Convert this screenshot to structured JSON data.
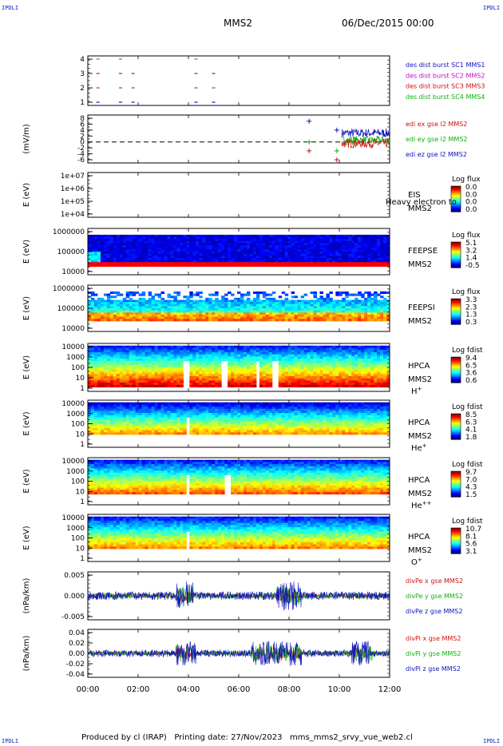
{
  "corner_labels": {
    "tl": "IPDLI",
    "tr": "IPDLI",
    "bl": "IPDLI",
    "br": "IPDLI"
  },
  "header": {
    "spacecraft": "MMS2",
    "date": "06/Dec/2015 00:00"
  },
  "footer": "Produced by cl (IRAP)   Printing date: 27/Nov/2023   mms_mms2_srvy_vue_web2.cl",
  "time_axis": {
    "ticks": [
      "00:00",
      "02:00",
      "04:00",
      "06:00",
      "08:00",
      "10:00",
      "12:00"
    ],
    "range_hours": [
      0,
      12
    ]
  },
  "chart_data": [
    {
      "id": "p1",
      "type": "scatter",
      "y_ticks": [
        "4",
        "3",
        "2",
        "1"
      ],
      "legend": [
        {
          "text": "des dist burst SC1 MMS1",
          "color": "#1010c0"
        },
        {
          "text": "des dist burst SC2 MMS2",
          "color": "#c010c0"
        },
        {
          "text": "des dist burst SC3 MMS3",
          "color": "#d01010"
        },
        {
          "text": "des dist burst SC4 MMS4",
          "color": "#10b010"
        }
      ],
      "marks": [
        {
          "t": 0.4,
          "y": 4,
          "c": "#10b010"
        },
        {
          "t": 1.3,
          "y": 4,
          "c": "#10b010"
        },
        {
          "t": 4.3,
          "y": 4,
          "c": "#10b010"
        },
        {
          "t": 0.4,
          "y": 3,
          "c": "#d01010"
        },
        {
          "t": 1.3,
          "y": 3,
          "c": "#d01010"
        },
        {
          "t": 1.8,
          "y": 3,
          "c": "#d01010"
        },
        {
          "t": 4.3,
          "y": 3,
          "c": "#d01010"
        },
        {
          "t": 5.0,
          "y": 3,
          "c": "#d01010"
        },
        {
          "t": 0.4,
          "y": 2,
          "c": "#c010c0"
        },
        {
          "t": 1.3,
          "y": 2,
          "c": "#c010c0"
        },
        {
          "t": 1.8,
          "y": 2,
          "c": "#c010c0"
        },
        {
          "t": 4.3,
          "y": 2,
          "c": "#c010c0"
        },
        {
          "t": 5.0,
          "y": 2,
          "c": "#c010c0"
        },
        {
          "t": 0.4,
          "y": 1,
          "c": "#1010c0"
        },
        {
          "t": 1.3,
          "y": 1,
          "c": "#1010c0"
        },
        {
          "t": 1.8,
          "y": 1,
          "c": "#1010c0"
        },
        {
          "t": 4.3,
          "y": 1,
          "c": "#1010c0"
        },
        {
          "t": 5.0,
          "y": 1,
          "c": "#1010c0"
        }
      ]
    },
    {
      "id": "p2",
      "type": "line",
      "ylabel": "(mV/m)",
      "y_ticks": [
        "8",
        "6",
        "4",
        "2",
        "0",
        "-2",
        "-4",
        "-6"
      ],
      "ylim": [
        -6,
        8
      ],
      "legend": [
        {
          "text": "edi ex gse l2 MMS2",
          "color": "#d01010"
        },
        {
          "text": "edi ey gse l2 MMS2",
          "color": "#10b010"
        },
        {
          "text": "edi ez gse l2 MMS2",
          "color": "#1010c0"
        }
      ],
      "points": [
        {
          "t": 8.8,
          "y": 7,
          "c": "#1010c0"
        },
        {
          "t": 8.8,
          "y": 0,
          "c": "#10b010"
        },
        {
          "t": 8.8,
          "y": -3,
          "c": "#d01010"
        },
        {
          "t": 9.9,
          "y": 4,
          "c": "#1010c0"
        },
        {
          "t": 9.9,
          "y": -3,
          "c": "#10b010"
        },
        {
          "t": 9.9,
          "y": -6,
          "c": "#d01010"
        }
      ]
    },
    {
      "id": "p3",
      "type": "heatmap",
      "ylabel": "E (eV)",
      "y_ticks": [
        "1e+07",
        "1e+06",
        "1e+05",
        "1e+04"
      ],
      "side": [
        "EIS",
        "MMS2"
      ],
      "overlay": "Heavy electron to",
      "cb_title": "Log flux",
      "cb_ticks": [
        "0.0",
        "0.0",
        "0.0",
        "0.0"
      ]
    },
    {
      "id": "p4",
      "type": "heatmap",
      "ylabel": "E (eV)",
      "y_ticks": [
        "1000000",
        "100000",
        "10000"
      ],
      "side": [
        "FEEPSE",
        "MMS2"
      ],
      "cb_title": "Log flux",
      "cb_ticks": [
        "5.1",
        "3.2",
        "1.4",
        "-0.5"
      ]
    },
    {
      "id": "p5",
      "type": "heatmap",
      "ylabel": "E (eV)",
      "y_ticks": [
        "1000000",
        "100000",
        "10000"
      ],
      "side": [
        "FEEPSI",
        "MMS2"
      ],
      "cb_title": "Log flux",
      "cb_ticks": [
        "3.3",
        "2.3",
        "1.3",
        "0.3"
      ]
    },
    {
      "id": "p6",
      "type": "heatmap",
      "ylabel": "E (eV)",
      "y_ticks": [
        "10000",
        "1000",
        "100",
        "10",
        "1"
      ],
      "side": [
        "HPCA",
        "MMS2"
      ],
      "species": "H",
      "charge": "+",
      "cb_title": "Log fdist",
      "cb_ticks": [
        "9.4",
        "6.5",
        "3.6",
        "0.6"
      ]
    },
    {
      "id": "p7",
      "type": "heatmap",
      "ylabel": "E (eV)",
      "y_ticks": [
        "10000",
        "1000",
        "100",
        "10",
        "1"
      ],
      "side": [
        "HPCA",
        "MMS2"
      ],
      "species": "He",
      "charge": "+",
      "cb_title": "Log fdist",
      "cb_ticks": [
        "8.5",
        "6.3",
        "4.1",
        "1.8"
      ]
    },
    {
      "id": "p8",
      "type": "heatmap",
      "ylabel": "E (eV)",
      "y_ticks": [
        "10000",
        "1000",
        "100",
        "10",
        "1"
      ],
      "side": [
        "HPCA",
        "MMS2"
      ],
      "species": "He",
      "charge": "++",
      "cb_title": "Log fdist",
      "cb_ticks": [
        "9.7",
        "7.0",
        "4.3",
        "1.5"
      ]
    },
    {
      "id": "p9",
      "type": "heatmap",
      "ylabel": "E (eV)",
      "y_ticks": [
        "10000",
        "1000",
        "100",
        "10",
        "1"
      ],
      "side": [
        "HPCA",
        "MMS2"
      ],
      "species": "O",
      "charge": "+",
      "cb_title": "Log fdist",
      "cb_ticks": [
        "10.7",
        "8.1",
        "5.6",
        "3.1"
      ]
    },
    {
      "id": "p10",
      "type": "line",
      "ylabel": "(nPa/km)",
      "y_ticks": [
        "0.005",
        "0.000",
        "-0.005"
      ],
      "ylim": [
        -0.008,
        0.008
      ],
      "legend": [
        {
          "text": "divPe x gse MMS2",
          "color": "#d01010"
        },
        {
          "text": "divPe y gse MMS2",
          "color": "#10b010"
        },
        {
          "text": "divPe z gse MMS2",
          "color": "#1010c0"
        }
      ]
    },
    {
      "id": "p11",
      "type": "line",
      "ylabel": "(nPa/km)",
      "y_ticks": [
        "0.04",
        "0.02",
        "0.00",
        "-0.02",
        "-0.04"
      ],
      "ylim": [
        -0.05,
        0.05
      ],
      "legend": [
        {
          "text": "divPi x gse MMS2",
          "color": "#d01010"
        },
        {
          "text": "divPi y gse MMS2",
          "color": "#10b010"
        },
        {
          "text": "divPi z gse MMS2",
          "color": "#1010c0"
        }
      ]
    }
  ]
}
